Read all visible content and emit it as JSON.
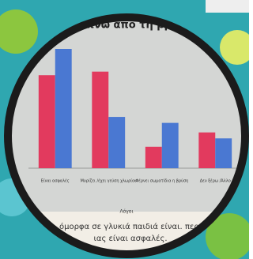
{
  "chart_data": {
    "type": "bar",
    "title": "ι δεν πίνω από τη βρύση του",
    "categories": [
      "Είναι ασφαλές",
      "Μυρίζει /έχει γεύση χλωρίου",
      "Φέρνει σωματίδια η βρύση",
      "Δεν ξέρω /Άλλο"
    ],
    "series": [
      {
        "color": "#e23a5e",
        "values": [
          7.8,
          8.1,
          1.8,
          3.0
        ]
      },
      {
        "color": "#4a78d2",
        "values": [
          10,
          4.3,
          3.8,
          2.5
        ]
      }
    ],
    "xlabel": "Λόγοι",
    "ylim": [
      0,
      10
    ]
  },
  "caption": [
    "όμορφα σε γλυκιά παιδιά είναι. περι",
    "ιας είναι ασφαλές."
  ]
}
